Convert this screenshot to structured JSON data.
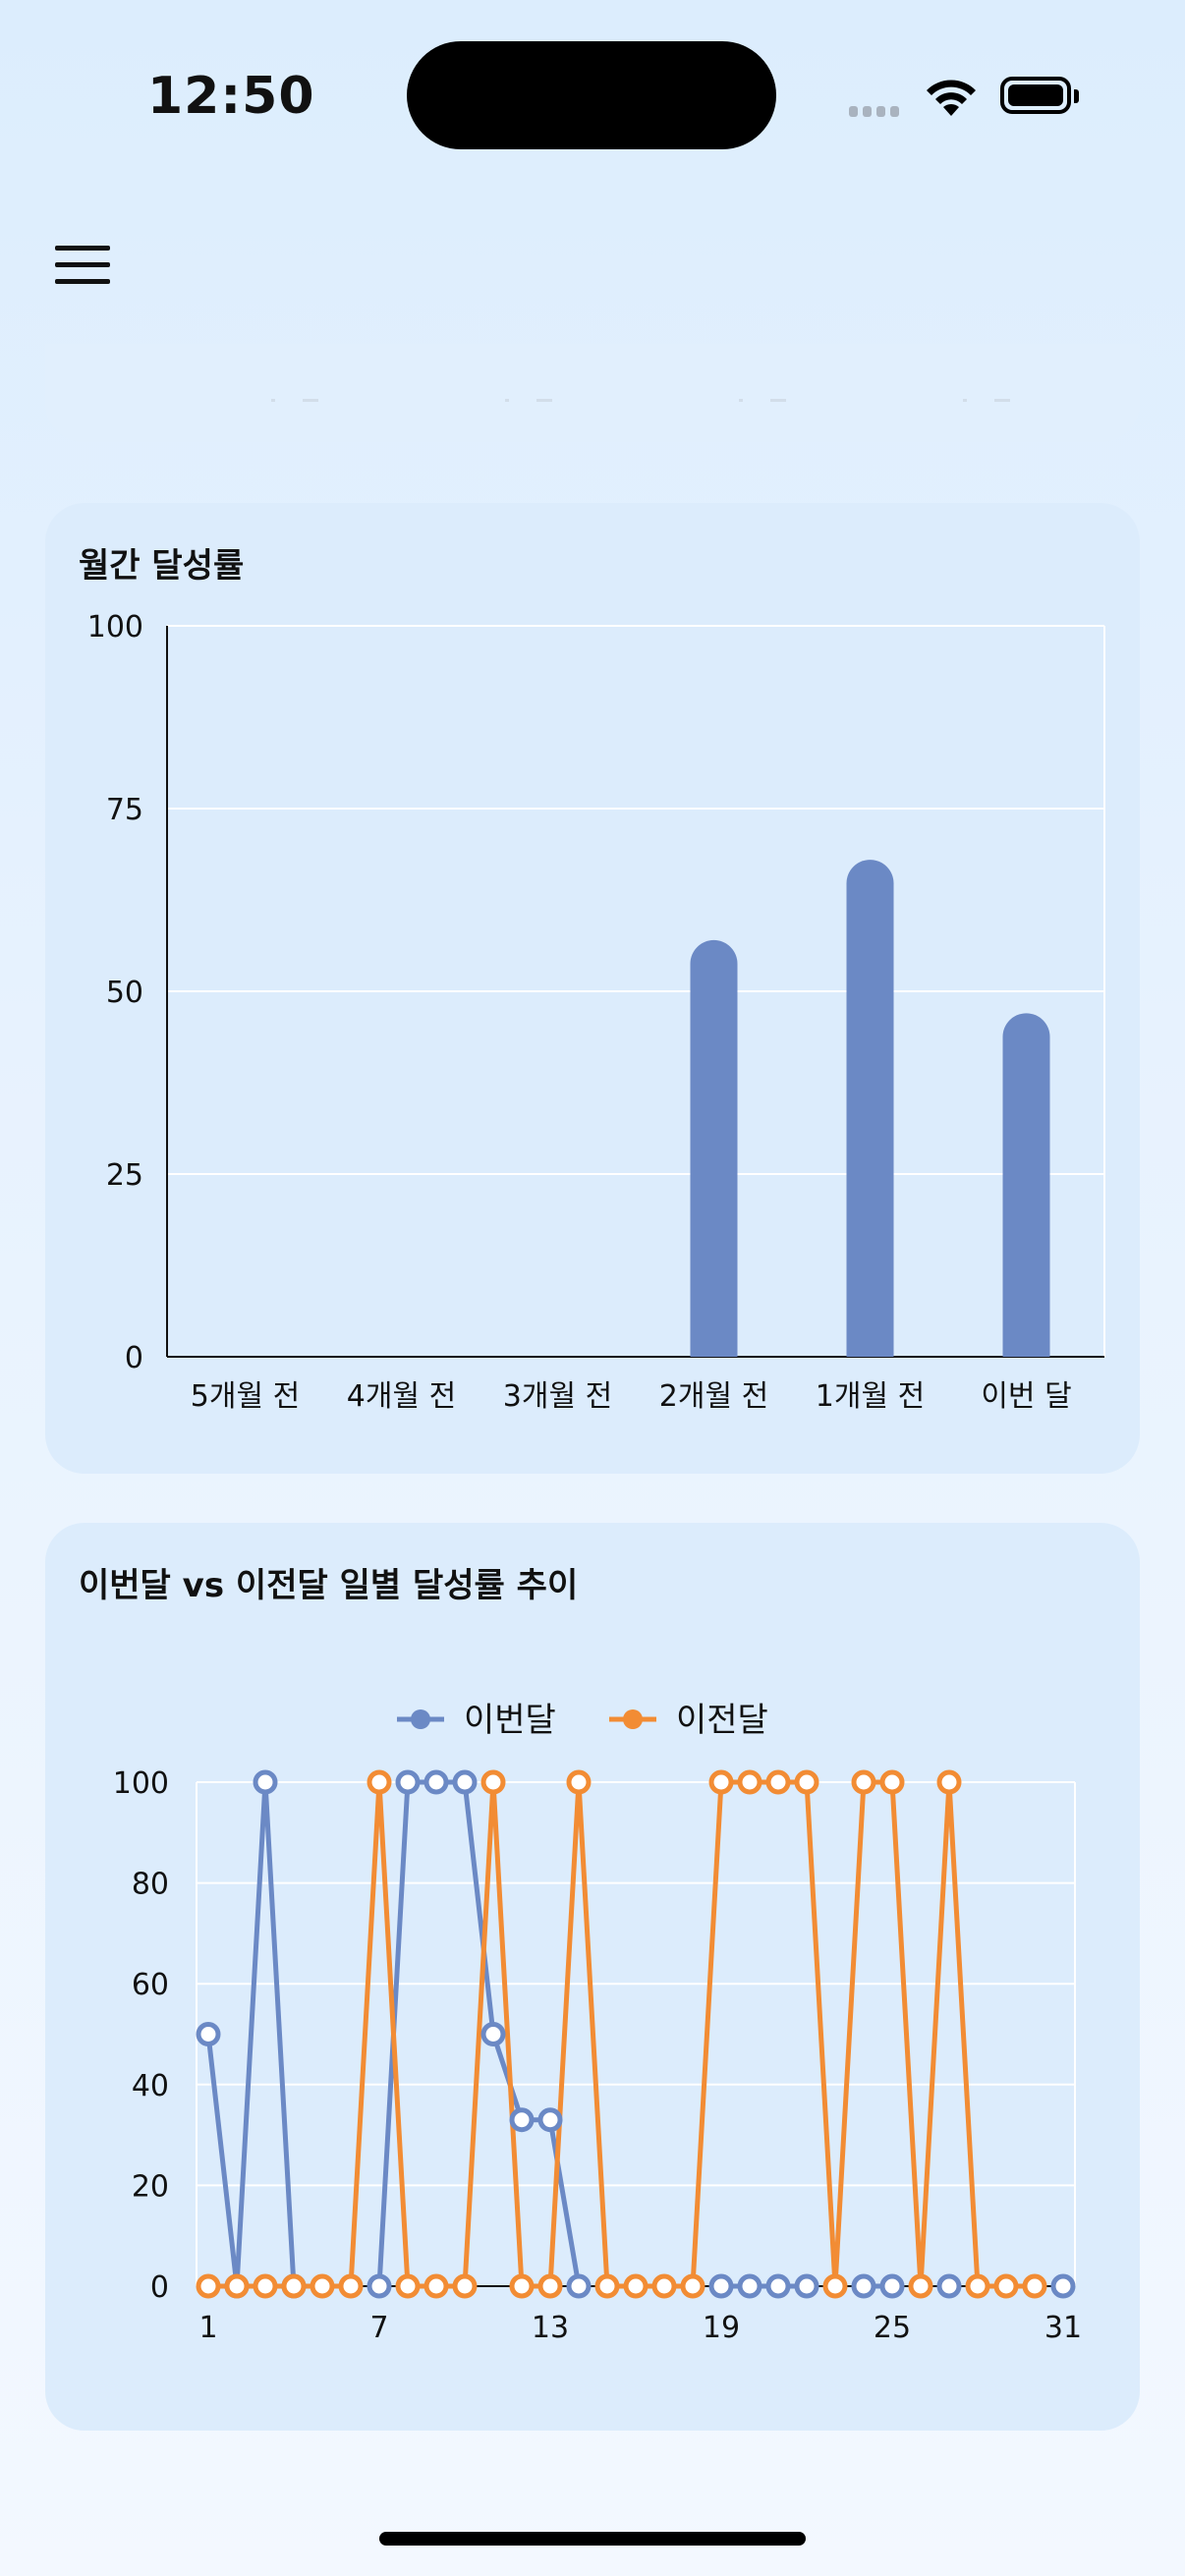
{
  "status_bar": {
    "time": "12:50"
  },
  "colors": {
    "this_month": "#6b89c5",
    "prev_month": "#f28c34",
    "card_bg": "#dcecfc"
  },
  "icons": [
    "hamburger-menu-icon",
    "wifi-icon",
    "battery-icon",
    "cellular-signal-icon"
  ],
  "monthly_card": {
    "title": "월간 달성률"
  },
  "trend_card": {
    "title": "이번달 vs 이전달 일별 달성률 추이"
  },
  "chart_data": [
    {
      "type": "bar",
      "title": "월간 달성률",
      "categories": [
        "5개월 전",
        "4개월 전",
        "3개월 전",
        "2개월 전",
        "1개월 전",
        "이번 달"
      ],
      "values": [
        0,
        0,
        0,
        57,
        68,
        47
      ],
      "ylim": [
        0,
        100
      ],
      "yticks": [
        0,
        25,
        50,
        75,
        100
      ],
      "grid": true,
      "color": "#6b89c5"
    },
    {
      "type": "line",
      "title": "이번달 vs 이전달 일별 달성률 추이",
      "x": [
        1,
        2,
        3,
        4,
        5,
        6,
        7,
        8,
        9,
        10,
        11,
        12,
        13,
        14,
        15,
        16,
        17,
        18,
        19,
        20,
        21,
        22,
        23,
        24,
        25,
        26,
        27,
        28,
        29,
        30,
        31
      ],
      "xticks": [
        1,
        7,
        13,
        19,
        25,
        31
      ],
      "ylim": [
        0,
        100
      ],
      "yticks": [
        0,
        20,
        40,
        60,
        80,
        100
      ],
      "legend": "top-center",
      "grid": true,
      "series": [
        {
          "name": "이번달",
          "color": "#6b89c5",
          "values": [
            50,
            0,
            100,
            0,
            null,
            null,
            0,
            100,
            100,
            100,
            50,
            33,
            33,
            0,
            null,
            null,
            null,
            null,
            0,
            0,
            0,
            0,
            null,
            0,
            0,
            null,
            0,
            null,
            null,
            null,
            0
          ]
        },
        {
          "name": "이전달",
          "color": "#f28c34",
          "values": [
            0,
            0,
            0,
            0,
            0,
            0,
            100,
            0,
            0,
            0,
            100,
            0,
            0,
            100,
            0,
            0,
            0,
            0,
            100,
            100,
            100,
            100,
            0,
            100,
            100,
            0,
            100,
            0,
            0,
            0,
            null
          ]
        }
      ]
    }
  ]
}
